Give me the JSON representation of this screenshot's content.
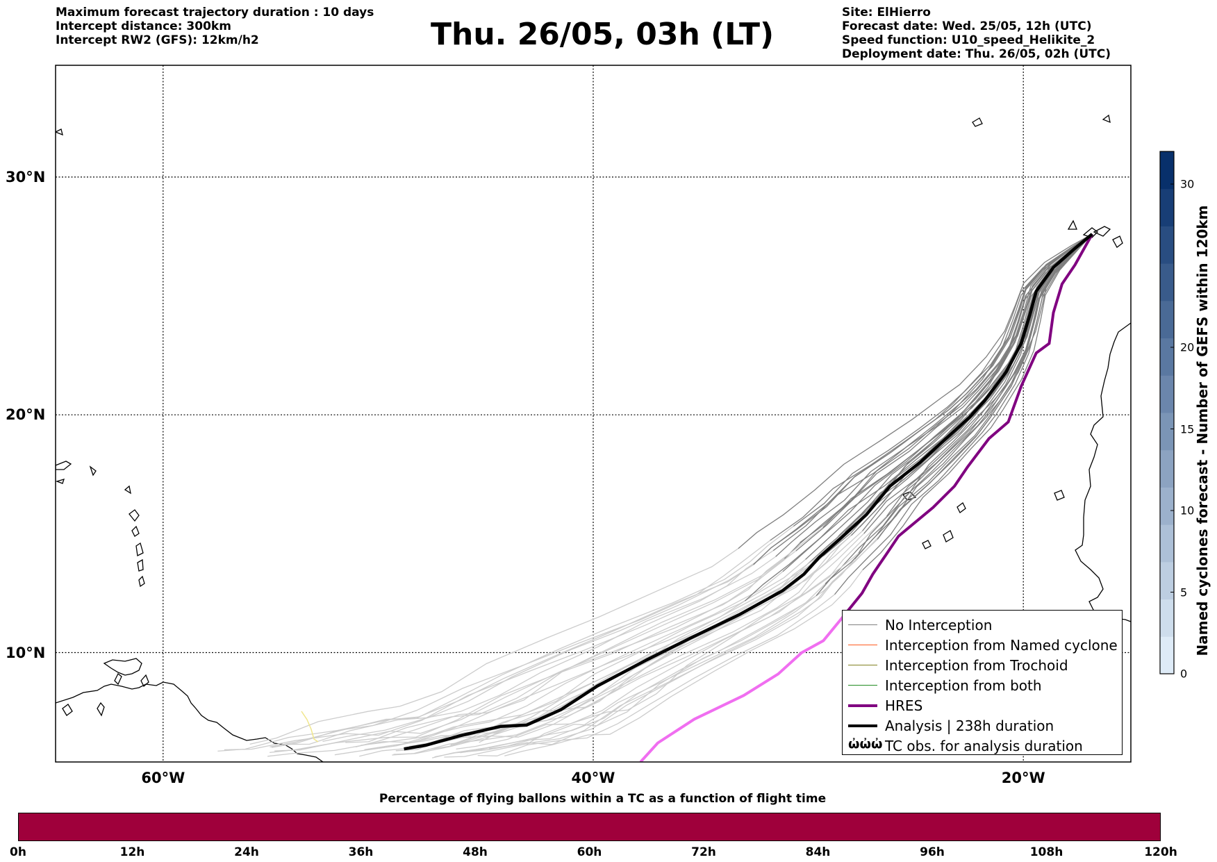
{
  "header": {
    "left_lines": [
      "Maximum forecast trajectory duration : 10 days",
      "Intercept distance: 300km",
      "Intercept RW2 (GFS):  12km/h2"
    ],
    "title": "Thu. 26/05, 03h (LT)",
    "right_lines": [
      "Site: ElHierro",
      "Forecast date: Wed. 25/05, 12h (UTC)",
      "Speed function: U10_speed_Helikite_2",
      "Deployment date: Thu. 26/05, 02h (UTC)"
    ]
  },
  "map": {
    "lon_range": [
      -65,
      -15
    ],
    "lat_range": [
      5.4,
      34.7
    ],
    "lon_ticks": [
      {
        "value": -60,
        "label": "60°W"
      },
      {
        "value": -40,
        "label": "40°W"
      },
      {
        "value": -20,
        "label": "20°W"
      }
    ],
    "lat_ticks": [
      {
        "value": 30,
        "label": "30°N"
      },
      {
        "value": 20,
        "label": "20°N"
      },
      {
        "value": 10,
        "label": "10°N"
      }
    ],
    "colors": {
      "no_interception": "#7f7f7f",
      "faded_trajectory": "#cccccc",
      "named_cyclone": "#ff5a1e",
      "trochoid": "#808020",
      "both": "#228b22",
      "hres": "#800080",
      "hres_faded": "#f06ef0",
      "analysis": "#000000"
    },
    "analysis": [
      [
        -16.8,
        27.6
      ],
      [
        -17.6,
        27.0
      ],
      [
        -18.6,
        26.2
      ],
      [
        -19.4,
        25.2
      ],
      [
        -19.7,
        24.2
      ],
      [
        -20.1,
        23.0
      ],
      [
        -20.8,
        21.8
      ],
      [
        -21.8,
        20.6
      ],
      [
        -22.5,
        19.9
      ],
      [
        -23.6,
        19.0
      ],
      [
        -24.8,
        18.0
      ],
      [
        -26.2,
        17.0
      ],
      [
        -27.3,
        15.8
      ],
      [
        -28.5,
        14.8
      ],
      [
        -29.5,
        14.0
      ],
      [
        -30.2,
        13.3
      ],
      [
        -31.2,
        12.6
      ],
      [
        -33.2,
        11.6
      ],
      [
        -35.5,
        10.6
      ],
      [
        -37.5,
        9.7
      ],
      [
        -39.8,
        8.6
      ],
      [
        -41.5,
        7.6
      ],
      [
        -43.1,
        6.95
      ],
      [
        -44.3,
        6.9
      ],
      [
        -46.2,
        6.5
      ],
      [
        -47.8,
        6.1
      ],
      [
        -48.8,
        5.95
      ]
    ],
    "hres_solid": [
      [
        -16.8,
        27.6
      ],
      [
        -17.6,
        26.3
      ],
      [
        -18.2,
        25.5
      ],
      [
        -18.6,
        24.3
      ],
      [
        -18.8,
        23.0
      ],
      [
        -19.4,
        22.6
      ],
      [
        -20.1,
        21.2
      ],
      [
        -20.7,
        19.7
      ],
      [
        -21.6,
        19.0
      ],
      [
        -22.6,
        17.8
      ],
      [
        -23.2,
        17.0
      ],
      [
        -24.2,
        16.1
      ],
      [
        -25.8,
        14.9
      ],
      [
        -26.4,
        14.1
      ],
      [
        -27.0,
        13.3
      ],
      [
        -27.5,
        12.5
      ],
      [
        -28.3,
        11.6
      ]
    ],
    "hres_faded": [
      [
        -28.3,
        11.6
      ],
      [
        -29.3,
        10.5
      ],
      [
        -30.3,
        10.0
      ],
      [
        -31.4,
        9.1
      ],
      [
        -33.0,
        8.2
      ],
      [
        -35.3,
        7.2
      ],
      [
        -37.0,
        6.2
      ],
      [
        -37.8,
        5.4
      ]
    ],
    "legend": [
      {
        "label": "No Interception",
        "type": "line",
        "color": "#7f7f7f",
        "width": 1.2
      },
      {
        "label": "Interception from Named cyclone",
        "type": "line",
        "color": "#ff5a1e",
        "width": 1.2
      },
      {
        "label": "Interception from Trochoid",
        "type": "line",
        "color": "#808020",
        "width": 1.2
      },
      {
        "label": "Interception from both",
        "type": "line",
        "color": "#228b22",
        "width": 1.2
      },
      {
        "label": "HRES",
        "type": "line",
        "color": "#800080",
        "width": 4
      },
      {
        "label": "Analysis | 238h duration",
        "type": "line",
        "color": "#000000",
        "width": 4
      },
      {
        "label": "TC obs. for analysis duration",
        "type": "symbol",
        "symbol": "ὠὠὠ"
      }
    ]
  },
  "colorbar": {
    "label": "Named cyclones forecast - Number of GEFS within 120km",
    "min": 0,
    "max": 32,
    "ticks": [
      0,
      5,
      10,
      15,
      20,
      30
    ]
  },
  "time_bar": {
    "title": "Percentage of flying ballons within a TC as a function of flight time",
    "color": "#9f003b",
    "ticks": [
      "0h",
      "12h",
      "24h",
      "36h",
      "48h",
      "60h",
      "72h",
      "84h",
      "96h",
      "108h",
      "120h"
    ]
  }
}
